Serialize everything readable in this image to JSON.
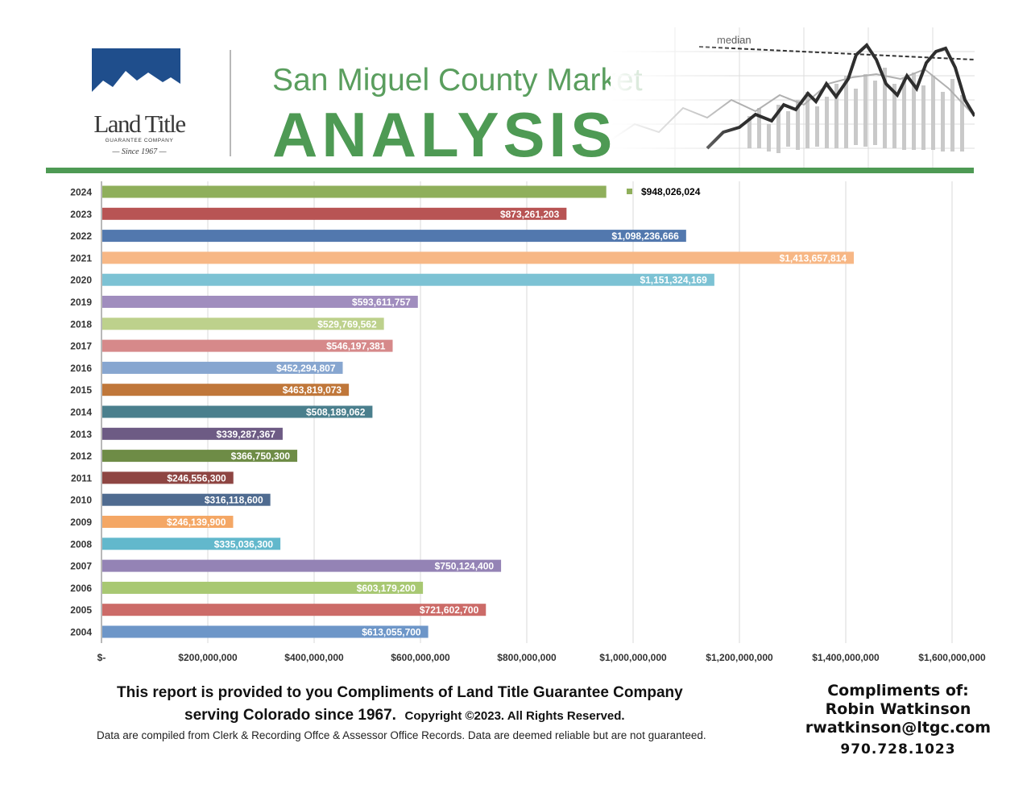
{
  "header": {
    "logo_name": "Land Title",
    "logo_subtitle": "GUARANTEE COMPANY",
    "logo_since": "Since 1967",
    "title_top": "San Miguel County Market",
    "title_main": "ANALYSIS",
    "decoration_label": "median"
  },
  "colors": {
    "brand_green": "#4e9a54",
    "logo_blue": "#1f4e8c"
  },
  "chart_data": {
    "type": "bar",
    "orientation": "horizontal",
    "categories": [
      "2024",
      "2023",
      "2022",
      "2021",
      "2020",
      "2019",
      "2018",
      "2017",
      "2016",
      "2015",
      "2014",
      "2013",
      "2012",
      "2011",
      "2010",
      "2009",
      "2008",
      "2007",
      "2006",
      "2005",
      "2004"
    ],
    "values": [
      948026024,
      873261203,
      1098236666,
      1413657814,
      1151324169,
      593611757,
      529769562,
      546197381,
      452294807,
      463819073,
      508189062,
      339287367,
      366750300,
      246556300,
      316118600,
      246139900,
      335036300,
      750124400,
      603179200,
      721602700,
      613055700
    ],
    "labels": [
      "$948,026,024",
      "$873,261,203",
      "$1,098,236,666",
      "$1,413,657,814",
      "$1,151,324,169",
      "$593,611,757",
      "$529,769,562",
      "$546,197,381",
      "$452,294,807",
      "$463,819,073",
      "$508,189,062",
      "$339,287,367",
      "$366,750,300",
      "$246,556,300",
      "$316,118,600",
      "$246,139,900",
      "$335,036,300",
      "$750,124,400",
      "$603,179,200",
      "$721,602,700",
      "$613,055,700"
    ],
    "colors": [
      "#8faf5b",
      "#b85454",
      "#5278ae",
      "#f7b785",
      "#7cc2d4",
      "#a08dbe",
      "#bdd18c",
      "#d6898a",
      "#87a6d0",
      "#c0773a",
      "#4a7f8d",
      "#6d5b84",
      "#6e8c46",
      "#8e4542",
      "#4f6b90",
      "#f4a765",
      "#62b8cc",
      "#9483b5",
      "#a8c872",
      "#cc6b68",
      "#6d96c8"
    ],
    "xlim": [
      0,
      1650000000
    ],
    "x_ticks": [
      0,
      200000000,
      400000000,
      600000000,
      800000000,
      1000000000,
      1200000000,
      1400000000,
      1600000000
    ],
    "x_tick_labels": [
      "$-",
      "$200,000,000",
      "$400,000,000",
      "$600,000,000",
      "$800,000,000",
      "$1,000,000,000",
      "$1,200,000,000",
      "$1,400,000,000",
      "$1,600,000,000"
    ],
    "grid": "vertical",
    "legend": {
      "label": "$948,026,024",
      "position": "top-right of first bar"
    }
  },
  "footer": {
    "line1": "This report is provided to you Compliments of Land Title Guarantee Company",
    "line2": "serving Colorado since 1967.",
    "copyright": "Copyright ©2023.  All Rights Reserved.",
    "disclaimer": "Data are compiled from Clerk & Recording Offce & Assessor Office Records.  Data are deemed reliable but are not guaranteed."
  },
  "contact": {
    "label": "Compliments of:",
    "name": "Robin Watkinson",
    "email": "rwatkinson@ltgc.com",
    "phone": "970.728.1023"
  }
}
